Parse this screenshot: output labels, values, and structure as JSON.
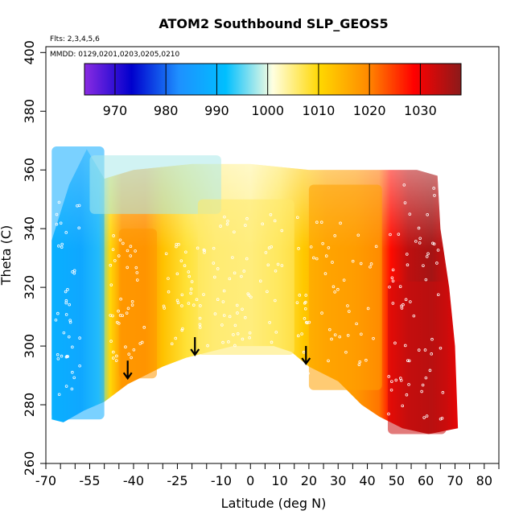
{
  "chart_data": {
    "type": "heatmap",
    "title": "ATOM2 Southbound SLP_GEOS5",
    "subtitle_flights": "Flts: 2,3,4,5,6",
    "subtitle_dates": "MMDD: 0129,0201,0203,0205,0210",
    "xlabel": "Latitude (deg N)",
    "ylabel": "Theta (C)",
    "xlim": [
      -70,
      85
    ],
    "ylim": [
      260,
      402
    ],
    "x_tick_labels": [
      "-70",
      "-55",
      "-40",
      "-25",
      "-10",
      "0",
      "10",
      "20",
      "30",
      "40",
      "50",
      "60",
      "70",
      "80"
    ],
    "x_tick_values": [
      -70,
      -55,
      -40,
      -25,
      -10,
      0,
      10,
      20,
      30,
      40,
      50,
      60,
      70,
      80
    ],
    "x_minor_ticks": [
      -65,
      -60,
      -50,
      -45,
      -35,
      -30,
      -20,
      -15,
      -5,
      5,
      15,
      25,
      35,
      45,
      55,
      65,
      75,
      85
    ],
    "y_ticks": [
      260,
      280,
      300,
      320,
      340,
      360,
      380,
      400
    ],
    "colorbar": {
      "min": 964,
      "max": 1038,
      "ticks": [
        970,
        980,
        990,
        1000,
        1010,
        1020,
        1030
      ],
      "colors": [
        "#8a2be2",
        "#0000cd",
        "#1e90ff",
        "#00bfff",
        "#ffffe0",
        "#ffd700",
        "#ff8c00",
        "#ff0000",
        "#8b1a1a"
      ]
    },
    "arrows": [
      {
        "lat": -42,
        "theta": 289
      },
      {
        "lat": -19,
        "theta": 297
      },
      {
        "lat": 19,
        "theta": 294
      }
    ],
    "field_regions": [
      {
        "name": "southern-ocean",
        "lat": [
          -68,
          -50
        ],
        "theta": [
          275,
          368
        ],
        "slp": 988
      },
      {
        "name": "southern-midlat",
        "lat": [
          -45,
          -32
        ],
        "theta": [
          289,
          340
        ],
        "slp": 1018
      },
      {
        "name": "upper-south",
        "lat": [
          -55,
          -10
        ],
        "theta": [
          345,
          365
        ],
        "slp": 998
      },
      {
        "name": "equatorial",
        "lat": [
          -18,
          15
        ],
        "theta": [
          297,
          350
        ],
        "slp": 1006
      },
      {
        "name": "northern-subtrop",
        "lat": [
          20,
          45
        ],
        "theta": [
          285,
          355
        ],
        "slp": 1017
      },
      {
        "name": "northern-midlat",
        "lat": [
          47,
          67
        ],
        "theta": [
          270,
          322
        ],
        "slp": 1033
      }
    ]
  }
}
